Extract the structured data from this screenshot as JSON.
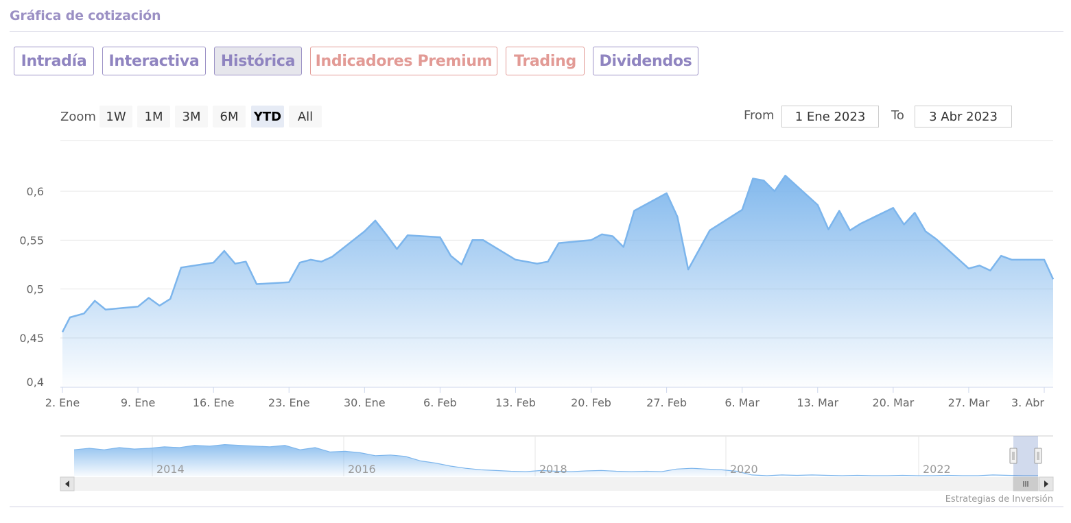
{
  "header": {
    "title": "Gráfica de cotización"
  },
  "tabs": [
    {
      "label": "Intradía"
    },
    {
      "label": "Interactiva"
    },
    {
      "label": "Histórica"
    },
    {
      "label": "Indicadores Premium"
    },
    {
      "label": "Trading"
    },
    {
      "label": "Dividendos"
    }
  ],
  "zoom": {
    "label": "Zoom",
    "buttons": [
      {
        "label": "1W"
      },
      {
        "label": "1M"
      },
      {
        "label": "3M"
      },
      {
        "label": "6M"
      },
      {
        "label": "YTD"
      },
      {
        "label": "All"
      }
    ],
    "selected": "YTD"
  },
  "range": {
    "from_label": "From",
    "from_value": "1 Ene 2023",
    "to_label": "To",
    "to_value": "3 Abr 2023"
  },
  "colors": {
    "title": "#9b90c4",
    "tab": "#8f84c0",
    "tab_warm": "#e29a95",
    "line": "#7cb5ec"
  },
  "chart_data": {
    "type": "area",
    "title": "",
    "xlabel": "",
    "ylabel": "",
    "ylim": [
      0.4,
      0.6
    ],
    "y_ticks": [
      {
        "v": 0.6,
        "label": "0,6"
      },
      {
        "v": 0.55,
        "label": "0,55"
      },
      {
        "v": 0.5,
        "label": "0,5"
      },
      {
        "v": 0.45,
        "label": "0,45"
      },
      {
        "v": 0.4,
        "label": "0,4"
      }
    ],
    "x_ticks": [
      {
        "day": 1,
        "label": "2. Ene"
      },
      {
        "day": 8,
        "label": "9. Ene"
      },
      {
        "day": 15,
        "label": "16. Ene"
      },
      {
        "day": 22,
        "label": "23. Ene"
      },
      {
        "day": 29,
        "label": "30. Ene"
      },
      {
        "day": 36,
        "label": "6. Feb"
      },
      {
        "day": 43,
        "label": "13. Feb"
      },
      {
        "day": 50,
        "label": "20. Feb"
      },
      {
        "day": 57,
        "label": "27. Feb"
      },
      {
        "day": 64,
        "label": "6. Mar"
      },
      {
        "day": 71,
        "label": "13. Mar"
      },
      {
        "day": 78,
        "label": "20. Mar"
      },
      {
        "day": 85,
        "label": "27. Mar"
      },
      {
        "day": 92,
        "label": "3. Abr"
      }
    ],
    "grid": true,
    "series": [
      {
        "points": [
          [
            1,
            0.456
          ],
          [
            1.7,
            0.471
          ],
          [
            3,
            0.475
          ],
          [
            4,
            0.488
          ],
          [
            5,
            0.479
          ],
          [
            6,
            0.482
          ],
          [
            7,
            0.491
          ],
          [
            8,
            0.483
          ],
          [
            9,
            0.49
          ],
          [
            10,
            0.522
          ],
          [
            11,
            0.527
          ],
          [
            12,
            0.539
          ],
          [
            13,
            0.526
          ],
          [
            14,
            0.528
          ],
          [
            15,
            0.505
          ],
          [
            16,
            0.507
          ],
          [
            17,
            0.527
          ],
          [
            18,
            0.53
          ],
          [
            19,
            0.528
          ],
          [
            20,
            0.533
          ],
          [
            21,
            0.559
          ],
          [
            22,
            0.57
          ],
          [
            23,
            0.556
          ],
          [
            24,
            0.541
          ],
          [
            25,
            0.555
          ],
          [
            26,
            0.553
          ],
          [
            27,
            0.534
          ],
          [
            28,
            0.525
          ],
          [
            29,
            0.55
          ],
          [
            30,
            0.55
          ],
          [
            31,
            0.53
          ],
          [
            32,
            0.528
          ],
          [
            33,
            0.526
          ],
          [
            34,
            0.528
          ],
          [
            35,
            0.547
          ],
          [
            36,
            0.55
          ],
          [
            37,
            0.556
          ],
          [
            38,
            0.554
          ],
          [
            39,
            0.543
          ],
          [
            40,
            0.58
          ],
          [
            41,
            0.598
          ],
          [
            42,
            0.574
          ],
          [
            43,
            0.52
          ],
          [
            44,
            0.54
          ],
          [
            45,
            0.56
          ],
          [
            46,
            0.581
          ],
          [
            47,
            0.613
          ],
          [
            48,
            0.611
          ],
          [
            49,
            0.6
          ],
          [
            50,
            0.616
          ],
          [
            51,
            0.586
          ],
          [
            52,
            0.561
          ],
          [
            53,
            0.58
          ],
          [
            54,
            0.56
          ],
          [
            55,
            0.567
          ],
          [
            56,
            0.583
          ],
          [
            57,
            0.566
          ],
          [
            58,
            0.578
          ],
          [
            59,
            0.559
          ],
          [
            60,
            0.551
          ],
          [
            61,
            0.521
          ],
          [
            62,
            0.524
          ],
          [
            63,
            0.519
          ],
          [
            64,
            0.534
          ],
          [
            65,
            0.53
          ],
          [
            66,
            0.53
          ],
          [
            67,
            0.51
          ]
        ]
      }
    ],
    "navigator": {
      "labels": [
        "2014",
        "2016",
        "2018",
        "2020",
        "2022"
      ],
      "series": [
        [
          0,
          0.3
        ],
        [
          1,
          0.32
        ],
        [
          2,
          0.3
        ],
        [
          3,
          0.33
        ],
        [
          4,
          0.31
        ],
        [
          5,
          0.32
        ],
        [
          6,
          0.34
        ],
        [
          7,
          0.33
        ],
        [
          8,
          0.36
        ],
        [
          9,
          0.35
        ],
        [
          10,
          0.37
        ],
        [
          11,
          0.36
        ],
        [
          12,
          0.35
        ],
        [
          13,
          0.34
        ],
        [
          14,
          0.36
        ],
        [
          15,
          0.3
        ],
        [
          16,
          0.33
        ],
        [
          17,
          0.27
        ],
        [
          18,
          0.28
        ],
        [
          19,
          0.26
        ],
        [
          20,
          0.22
        ],
        [
          21,
          0.23
        ],
        [
          22,
          0.21
        ],
        [
          23,
          0.15
        ],
        [
          24,
          0.12
        ],
        [
          25,
          0.08
        ],
        [
          26,
          0.05
        ],
        [
          27,
          0.03
        ],
        [
          28,
          0.02
        ],
        [
          29,
          0.01
        ],
        [
          30,
          0.005
        ],
        [
          31,
          0.02
        ],
        [
          32,
          0.01
        ],
        [
          33,
          0.005
        ],
        [
          34,
          0.015
        ],
        [
          35,
          0.02
        ],
        [
          36,
          0.01
        ],
        [
          37,
          0.005
        ],
        [
          38,
          0.01
        ],
        [
          39,
          0.005
        ],
        [
          40,
          0.04
        ],
        [
          41,
          0.05
        ],
        [
          42,
          0.04
        ],
        [
          43,
          0.03
        ],
        [
          44,
          0.01
        ],
        [
          45,
          -0.04
        ],
        [
          46,
          -0.05
        ],
        [
          47,
          -0.04
        ],
        [
          48,
          -0.045
        ],
        [
          49,
          -0.04
        ],
        [
          50,
          -0.045
        ],
        [
          51,
          -0.05
        ],
        [
          52,
          -0.045
        ],
        [
          53,
          -0.05
        ],
        [
          54,
          -0.05
        ],
        [
          55,
          -0.045
        ],
        [
          56,
          -0.05
        ],
        [
          57,
          -0.05
        ],
        [
          58,
          -0.045
        ],
        [
          59,
          -0.05
        ],
        [
          60,
          -0.05
        ],
        [
          61,
          -0.04
        ],
        [
          62,
          -0.045
        ],
        [
          63,
          -0.05
        ],
        [
          64,
          -0.05
        ]
      ]
    },
    "credit": "Estrategias de Inversión"
  }
}
